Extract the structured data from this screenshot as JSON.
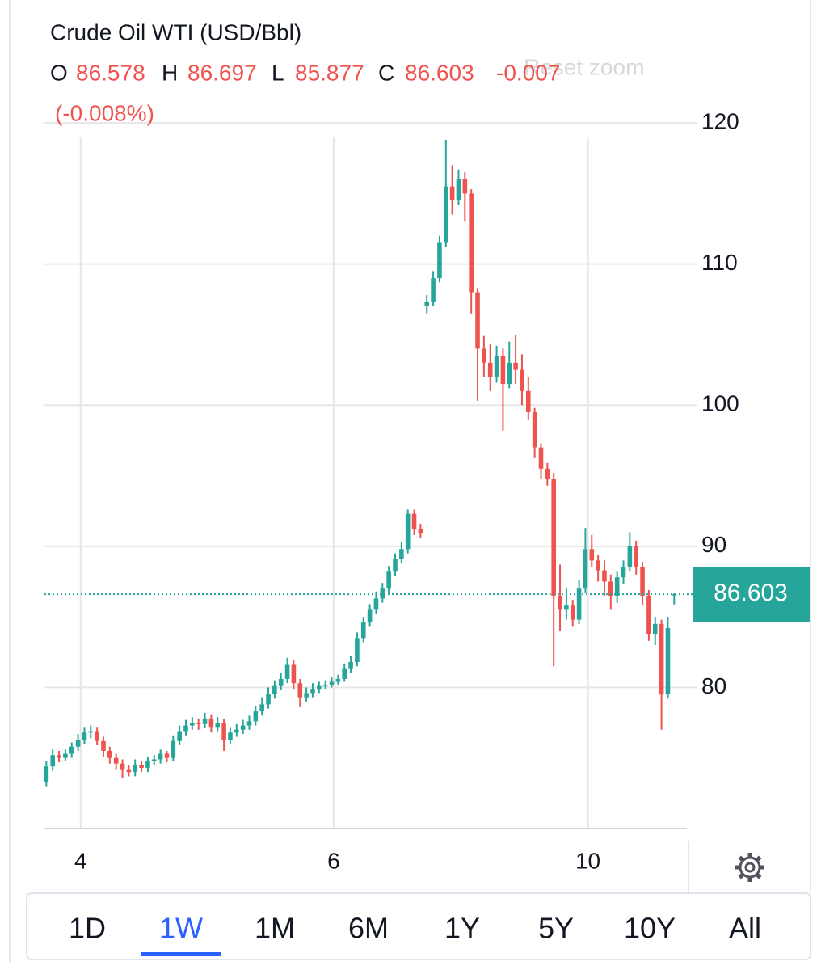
{
  "chart_data": {
    "type": "candlestick",
    "title": "Crude Oil WTI (USD/Bbl)",
    "ohlc_labels": [
      "O",
      "H",
      "L",
      "C"
    ],
    "change": -0.007,
    "change_pct": "(-0.008%)",
    "x": [
      0,
      1,
      2,
      3,
      4,
      5,
      6,
      7,
      8,
      9,
      10,
      11,
      12,
      13,
      14,
      15,
      16,
      17,
      18,
      19,
      20,
      21,
      22,
      23,
      24,
      25,
      26,
      27,
      28,
      29,
      30,
      31,
      32,
      33,
      34,
      35,
      36,
      37,
      38,
      39,
      40,
      41,
      42,
      43,
      44,
      45,
      46,
      47,
      48,
      49,
      50,
      51,
      52,
      53,
      54,
      55,
      56,
      57,
      58,
      59,
      60,
      61,
      62,
      63,
      64,
      65,
      66,
      67,
      68,
      69,
      70,
      71,
      72,
      73,
      74,
      75,
      76,
      77,
      78,
      79,
      80,
      81,
      82,
      83,
      84,
      85,
      86,
      87,
      88,
      89,
      90,
      91,
      92,
      93,
      94,
      95,
      96,
      97,
      98,
      99
    ],
    "open": [
      73.3,
      74.4,
      75.2,
      75.0,
      75.3,
      75.8,
      76.3,
      76.8,
      76.9,
      76.2,
      75.5,
      75.0,
      74.6,
      74.2,
      74.0,
      74.5,
      74.3,
      74.8,
      74.9,
      75.3,
      75.0,
      76.2,
      76.9,
      77.3,
      77.5,
      77.4,
      77.8,
      77.2,
      77.5,
      76.3,
      76.8,
      77.0,
      77.3,
      77.6,
      78.3,
      78.8,
      79.5,
      80.1,
      80.6,
      81.6,
      80.3,
      79.3,
      79.6,
      79.9,
      80.1,
      80.2,
      80.4,
      80.6,
      81.3,
      81.8,
      83.5,
      84.6,
      85.5,
      86.3,
      87.0,
      88.2,
      89.1,
      89.8,
      92.3,
      91.2,
      107.0,
      107.3,
      109.0,
      111.5,
      115.5,
      114.5,
      116.0,
      115.0,
      108.0,
      104.0,
      103.0,
      102.0,
      103.5,
      101.5,
      103.0,
      102.5,
      101.0,
      99.5,
      97.0,
      95.5,
      94.8,
      86.5,
      85.5,
      85.8,
      84.8,
      87.0,
      89.8,
      89.0,
      88.3,
      87.5,
      86.5,
      87.8,
      88.5,
      90.0,
      88.5,
      86.5,
      83.8,
      84.5,
      79.5,
      86.578
    ],
    "high": [
      74.8,
      75.6,
      75.5,
      75.6,
      76.1,
      76.7,
      77.2,
      77.3,
      77.2,
      76.5,
      75.8,
      75.3,
      74.9,
      74.5,
      74.9,
      74.8,
      75.1,
      75.2,
      75.6,
      75.5,
      76.6,
      77.3,
      77.7,
      77.9,
      77.8,
      78.2,
      78.1,
      77.9,
      77.8,
      77.2,
      77.4,
      77.7,
      78.0,
      78.7,
      79.3,
      80.0,
      80.5,
      81.0,
      82.1,
      81.9,
      80.6,
      80.0,
      80.3,
      80.4,
      80.5,
      80.7,
      80.9,
      81.7,
      82.2,
      83.9,
      85.0,
      85.9,
      86.8,
      87.4,
      88.6,
      89.5,
      90.3,
      92.6,
      92.6,
      91.6,
      107.8,
      109.5,
      112.0,
      118.8,
      117.0,
      116.7,
      116.5,
      115.3,
      108.3,
      104.9,
      104.3,
      104.2,
      104.0,
      104.5,
      105.0,
      103.6,
      102.0,
      99.8,
      97.3,
      95.9,
      95.2,
      88.7,
      87.0,
      86.2,
      87.6,
      91.3,
      90.8,
      89.4,
      89.0,
      88.0,
      88.2,
      89.0,
      91.0,
      90.4,
      88.9,
      86.9,
      85.0,
      84.8,
      85.0,
      86.697
    ],
    "low": [
      73.0,
      74.1,
      74.7,
      74.8,
      75.0,
      75.5,
      76.0,
      76.4,
      75.9,
      75.1,
      74.6,
      74.2,
      73.6,
      73.7,
      73.7,
      74.0,
      74.0,
      74.5,
      74.6,
      74.7,
      74.8,
      75.9,
      76.6,
      77.0,
      77.0,
      77.1,
      76.8,
      76.9,
      75.5,
      76.0,
      76.5,
      76.7,
      77.0,
      77.3,
      78.0,
      78.5,
      79.2,
      79.8,
      80.3,
      79.9,
      78.6,
      79.0,
      79.3,
      79.6,
      79.9,
      80.0,
      80.2,
      80.4,
      81.0,
      81.5,
      83.2,
      84.3,
      85.2,
      86.0,
      86.7,
      87.9,
      88.8,
      89.5,
      90.8,
      90.6,
      106.5,
      107.0,
      108.7,
      111.2,
      113.5,
      114.2,
      113.0,
      106.5,
      100.3,
      102.0,
      101.0,
      101.6,
      98.2,
      101.2,
      101.5,
      100.0,
      99.0,
      96.3,
      94.8,
      94.3,
      81.5,
      84.0,
      84.8,
      84.3,
      84.5,
      86.7,
      88.5,
      87.5,
      86.5,
      85.5,
      86.0,
      87.3,
      88.2,
      88.0,
      85.8,
      83.3,
      83.0,
      77.0,
      79.2,
      85.877
    ],
    "close": [
      74.4,
      75.2,
      75.0,
      75.3,
      75.8,
      76.3,
      76.8,
      76.9,
      76.2,
      75.5,
      75.0,
      74.6,
      74.2,
      74.0,
      74.5,
      74.3,
      74.8,
      74.9,
      75.3,
      75.0,
      76.2,
      76.9,
      77.3,
      77.5,
      77.4,
      77.8,
      77.2,
      77.5,
      76.3,
      76.8,
      77.0,
      77.3,
      77.6,
      78.3,
      78.8,
      79.5,
      80.1,
      80.6,
      81.6,
      80.3,
      79.3,
      79.6,
      79.9,
      80.1,
      80.2,
      80.4,
      80.6,
      81.3,
      81.8,
      83.5,
      84.6,
      85.5,
      86.3,
      87.0,
      88.2,
      89.1,
      89.8,
      92.3,
      91.2,
      90.9,
      107.3,
      109.0,
      111.5,
      115.5,
      114.5,
      116.0,
      115.0,
      108.0,
      104.0,
      103.0,
      102.0,
      103.5,
      101.5,
      103.0,
      102.5,
      101.0,
      99.5,
      97.0,
      95.5,
      94.8,
      86.5,
      85.5,
      85.8,
      84.8,
      87.0,
      89.8,
      89.0,
      88.3,
      87.5,
      86.5,
      87.8,
      88.5,
      90.0,
      88.5,
      86.5,
      83.8,
      84.5,
      79.5,
      84.2,
      86.603
    ],
    "up_color": "#26a69a",
    "down_color": "#ef5350",
    "xlim": [
      -0.3,
      101
    ],
    "xticks": [
      {
        "value": 5.4,
        "label": "4"
      },
      {
        "value": 45.3,
        "label": "6"
      },
      {
        "value": 85.4,
        "label": "10"
      }
    ],
    "ylim": [
      70,
      128
    ],
    "yticks": [
      80,
      90,
      100,
      110,
      120
    ],
    "grid": true
  },
  "ui": {
    "reset_zoom": "Reset zoom",
    "range_buttons": [
      "1D",
      "1W",
      "1M",
      "6M",
      "1Y",
      "5Y",
      "10Y",
      "All"
    ],
    "selected_range": 1
  }
}
